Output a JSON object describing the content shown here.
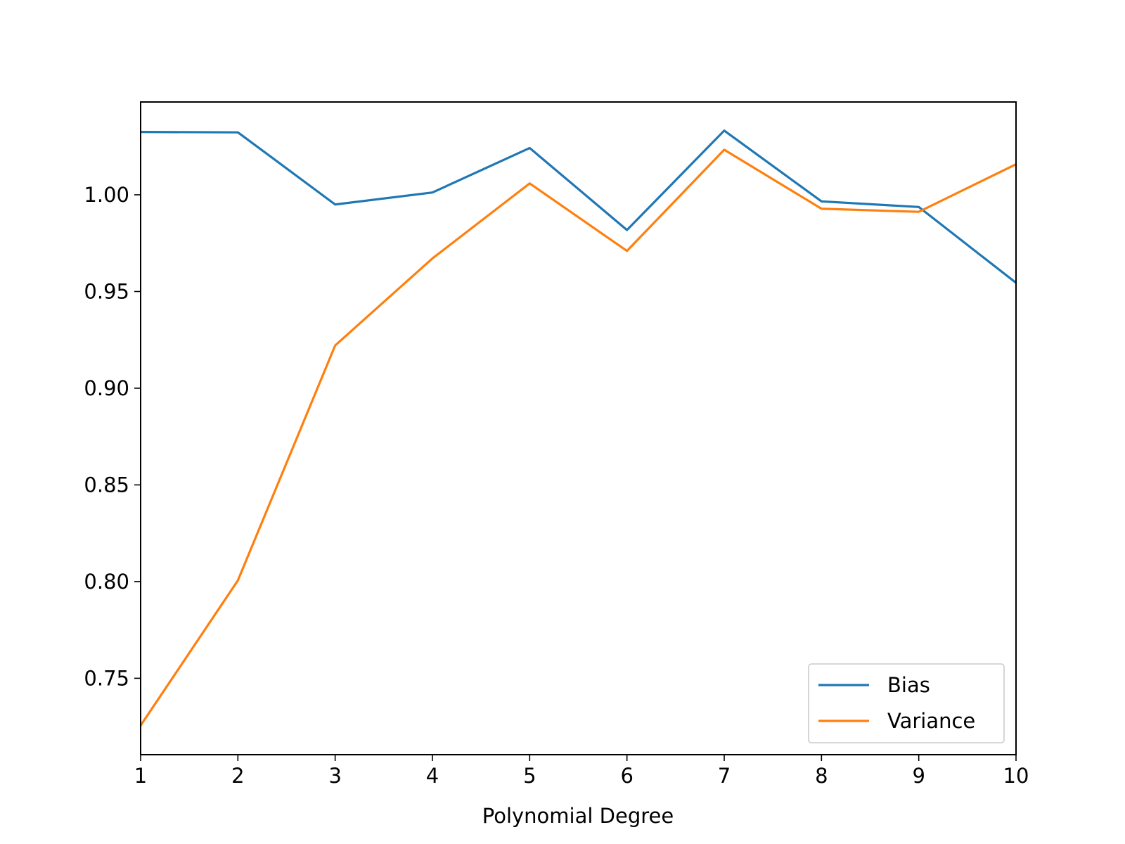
{
  "chart_data": {
    "type": "line",
    "title": "",
    "xlabel": "Polynomial Degree",
    "ylabel": "",
    "x": [
      1,
      2,
      3,
      4,
      5,
      6,
      7,
      8,
      9,
      10
    ],
    "xlim": [
      1,
      10
    ],
    "ylim": [
      0.7105,
      1.048
    ],
    "xticks": [
      1,
      2,
      3,
      4,
      5,
      6,
      7,
      8,
      9,
      10
    ],
    "yticks": [
      0.75,
      0.8,
      0.85,
      0.9,
      0.95,
      1.0
    ],
    "ytick_labels": [
      "0.75",
      "0.80",
      "0.85",
      "0.90",
      "0.95",
      "1.00"
    ],
    "grid": false,
    "legend_position": "lower-right",
    "series": [
      {
        "name": "Bias",
        "color": "#1f77b4",
        "values": [
          1.0325,
          1.0323,
          0.995,
          1.0012,
          1.0242,
          0.9818,
          1.0332,
          0.9966,
          0.9937,
          0.9545
        ]
      },
      {
        "name": "Variance",
        "color": "#ff7f0e",
        "values": [
          0.7256,
          0.8006,
          0.9221,
          0.9671,
          1.0059,
          0.971,
          1.0233,
          0.9928,
          0.9912,
          1.0158
        ]
      }
    ]
  }
}
